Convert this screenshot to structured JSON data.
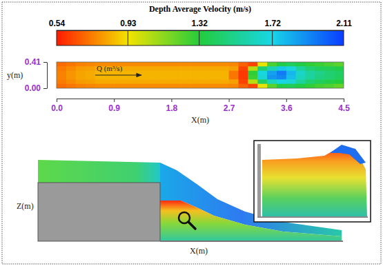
{
  "chart_data": {
    "type": "heatmap",
    "title": "Depth Average Velocity (m/s)",
    "x_label": "X(m)",
    "y_label": "y(m)",
    "annotation": "Q (m³/s)",
    "xlim": [
      0,
      4.5
    ],
    "xticks": [
      {
        "value": 0,
        "label": "0.0"
      },
      0.9,
      1.8,
      2.7,
      3.6,
      4.5
    ],
    "ylim": [
      0,
      0.41
    ],
    "yticks": [
      {
        "value": 0,
        "label": "0.00"
      },
      0.41
    ],
    "cells": [
      [
        0.7,
        0.72,
        0.74,
        0.75,
        0.76,
        0.76,
        0.76,
        0.76,
        0.76,
        0.76,
        0.76,
        0.76,
        0.76,
        0.76,
        0.76,
        0.76,
        0.76,
        0.76,
        0.75,
        0.68,
        0.62,
        0.95,
        1.25,
        1.35,
        1.4,
        1.35,
        1.3,
        1.28,
        1.25,
        1.22
      ],
      [
        0.73,
        0.76,
        0.79,
        0.8,
        0.82,
        0.82,
        0.82,
        0.82,
        0.82,
        0.82,
        0.82,
        0.82,
        0.82,
        0.82,
        0.82,
        0.82,
        0.82,
        0.82,
        0.8,
        0.62,
        1.05,
        1.45,
        1.6,
        1.75,
        1.7,
        1.55,
        1.45,
        1.4,
        1.38,
        1.35
      ],
      [
        0.74,
        0.78,
        0.81,
        0.82,
        0.84,
        0.84,
        0.84,
        0.84,
        0.84,
        0.84,
        0.84,
        0.84,
        0.84,
        0.84,
        0.84,
        0.84,
        0.84,
        0.84,
        0.72,
        0.6,
        1.3,
        1.7,
        1.85,
        1.95,
        1.8,
        1.65,
        1.55,
        1.5,
        1.45,
        1.42
      ],
      [
        0.74,
        0.78,
        0.81,
        0.82,
        0.84,
        0.84,
        0.84,
        0.84,
        0.84,
        0.84,
        0.84,
        0.84,
        0.84,
        0.84,
        0.84,
        0.84,
        0.84,
        0.84,
        0.72,
        0.6,
        1.28,
        1.68,
        1.88,
        1.92,
        1.78,
        1.62,
        1.55,
        1.48,
        1.45,
        1.4
      ],
      [
        0.73,
        0.76,
        0.79,
        0.8,
        0.82,
        0.82,
        0.82,
        0.82,
        0.82,
        0.82,
        0.82,
        0.82,
        0.82,
        0.82,
        0.82,
        0.82,
        0.82,
        0.82,
        0.8,
        0.62,
        1.05,
        1.42,
        1.62,
        1.72,
        1.68,
        1.55,
        1.45,
        1.4,
        1.36,
        1.33
      ],
      [
        0.7,
        0.72,
        0.74,
        0.75,
        0.76,
        0.76,
        0.76,
        0.76,
        0.76,
        0.76,
        0.76,
        0.76,
        0.76,
        0.76,
        0.76,
        0.76,
        0.76,
        0.76,
        0.75,
        0.68,
        0.62,
        0.95,
        1.22,
        1.35,
        1.38,
        1.35,
        1.3,
        1.26,
        1.24,
        1.2
      ]
    ],
    "colorbar": {
      "range": [
        0.54,
        2.11
      ],
      "ticks": [
        0.54,
        0.93,
        1.32,
        1.72,
        2.11
      ],
      "colors": [
        "#ff1a00",
        "#f2e400",
        "#22cc3c",
        "#18d6e6",
        "#0a3cff"
      ]
    },
    "side_view": {
      "x_label": "X(m)",
      "z_label": "Z(m)"
    }
  }
}
